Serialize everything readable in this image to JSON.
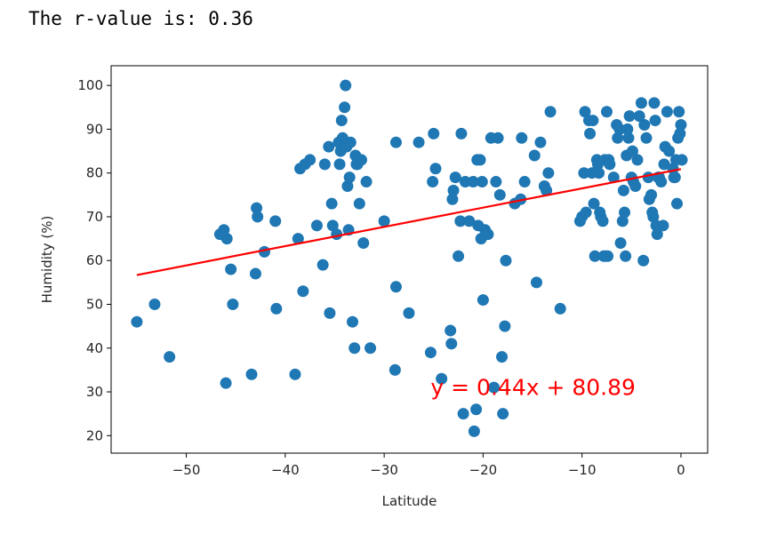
{
  "output": {
    "text": "The r-value is: 0.36"
  },
  "colors": {
    "points": "#1f77b4",
    "regression": "#ff0000",
    "frame": "#000000"
  },
  "chart_data": {
    "type": "scatter",
    "title": "",
    "xlabel": "Latitude",
    "ylabel": "Humidity (%)",
    "xlim": [
      -57.6,
      2.7
    ],
    "ylim": [
      16.0,
      104.5
    ],
    "xticks": [
      -50,
      -40,
      -30,
      -20,
      -10,
      0
    ],
    "xtick_labels": [
      "−50",
      "−40",
      "−30",
      "−20",
      "−10",
      "0"
    ],
    "yticks": [
      20,
      30,
      40,
      50,
      60,
      70,
      80,
      90,
      100
    ],
    "ytick_labels": [
      "20",
      "30",
      "40",
      "50",
      "60",
      "70",
      "80",
      "90",
      "100"
    ],
    "grid": false,
    "regression": {
      "slope": 0.44,
      "intercept": 80.89,
      "x_range": [
        -55.0,
        0.0
      ]
    },
    "annotation": {
      "text": "y = 0.44x + 80.89",
      "x": -25.3,
      "y": 29.3
    },
    "points": [
      [
        -55.0,
        46
      ],
      [
        -53.2,
        50
      ],
      [
        -51.7,
        38
      ],
      [
        -46.6,
        66
      ],
      [
        -46.2,
        67
      ],
      [
        -45.9,
        65
      ],
      [
        -46.0,
        32
      ],
      [
        -45.5,
        58
      ],
      [
        -45.3,
        50
      ],
      [
        -43.4,
        34
      ],
      [
        -43.0,
        57
      ],
      [
        -42.9,
        72
      ],
      [
        -42.8,
        70
      ],
      [
        -42.1,
        62
      ],
      [
        -41.0,
        69
      ],
      [
        -40.9,
        49
      ],
      [
        -39.0,
        34
      ],
      [
        -38.7,
        65
      ],
      [
        -38.5,
        81
      ],
      [
        -38.2,
        53
      ],
      [
        -38.0,
        82
      ],
      [
        -37.5,
        83
      ],
      [
        -36.8,
        68
      ],
      [
        -36.2,
        59
      ],
      [
        -36.0,
        82
      ],
      [
        -35.6,
        86
      ],
      [
        -35.5,
        48
      ],
      [
        -35.3,
        73
      ],
      [
        -35.2,
        68
      ],
      [
        -34.8,
        66
      ],
      [
        -34.6,
        87
      ],
      [
        -34.5,
        82
      ],
      [
        -34.4,
        85
      ],
      [
        -34.3,
        92
      ],
      [
        -34.2,
        88
      ],
      [
        -34.0,
        95
      ],
      [
        -33.9,
        100
      ],
      [
        -33.8,
        86
      ],
      [
        -33.7,
        77
      ],
      [
        -33.6,
        67
      ],
      [
        -33.5,
        79
      ],
      [
        -33.4,
        87
      ],
      [
        -33.2,
        46
      ],
      [
        -33.0,
        40
      ],
      [
        -32.9,
        84
      ],
      [
        -32.8,
        82
      ],
      [
        -32.7,
        82
      ],
      [
        -32.5,
        73
      ],
      [
        -32.3,
        83
      ],
      [
        -32.1,
        64
      ],
      [
        -31.8,
        78
      ],
      [
        -31.4,
        40
      ],
      [
        -30.0,
        69
      ],
      [
        -28.8,
        87
      ],
      [
        -28.8,
        54
      ],
      [
        -28.9,
        35
      ],
      [
        -27.5,
        48
      ],
      [
        -26.5,
        87
      ],
      [
        -25.3,
        39
      ],
      [
        -25.0,
        89
      ],
      [
        -25.1,
        78
      ],
      [
        -24.8,
        81
      ],
      [
        -24.2,
        33
      ],
      [
        -23.3,
        44
      ],
      [
        -23.2,
        41
      ],
      [
        -23.1,
        74
      ],
      [
        -23.0,
        76
      ],
      [
        -22.8,
        79
      ],
      [
        -22.5,
        61
      ],
      [
        -22.3,
        69
      ],
      [
        -22.2,
        89
      ],
      [
        -22.0,
        25
      ],
      [
        -21.8,
        78
      ],
      [
        -21.4,
        69
      ],
      [
        -21.0,
        78
      ],
      [
        -20.9,
        21
      ],
      [
        -20.7,
        26
      ],
      [
        -20.6,
        83
      ],
      [
        -20.5,
        68
      ],
      [
        -20.3,
        83
      ],
      [
        -20.2,
        65
      ],
      [
        -20.1,
        78
      ],
      [
        -20.0,
        51
      ],
      [
        -19.8,
        67
      ],
      [
        -19.5,
        66
      ],
      [
        -19.2,
        88
      ],
      [
        -18.9,
        31
      ],
      [
        -18.7,
        78
      ],
      [
        -18.5,
        88
      ],
      [
        -18.3,
        75
      ],
      [
        -18.1,
        38
      ],
      [
        -18.0,
        25
      ],
      [
        -17.8,
        45
      ],
      [
        -17.7,
        60
      ],
      [
        -16.8,
        73
      ],
      [
        -16.2,
        74
      ],
      [
        -16.1,
        88
      ],
      [
        -15.8,
        78
      ],
      [
        -14.8,
        84
      ],
      [
        -14.6,
        55
      ],
      [
        -14.2,
        87
      ],
      [
        -13.8,
        77
      ],
      [
        -13.6,
        76
      ],
      [
        -13.4,
        80
      ],
      [
        -13.2,
        94
      ],
      [
        -12.2,
        49
      ],
      [
        -10.2,
        69
      ],
      [
        -10.0,
        70
      ],
      [
        -9.8,
        80
      ],
      [
        -9.7,
        94
      ],
      [
        -9.6,
        71
      ],
      [
        -9.3,
        92
      ],
      [
        -9.2,
        89
      ],
      [
        -9.0,
        80
      ],
      [
        -8.9,
        92
      ],
      [
        -8.8,
        73
      ],
      [
        -8.7,
        61
      ],
      [
        -8.5,
        83
      ],
      [
        -8.4,
        82
      ],
      [
        -8.3,
        80
      ],
      [
        -8.2,
        71
      ],
      [
        -8.1,
        70
      ],
      [
        -7.9,
        69
      ],
      [
        -7.8,
        61
      ],
      [
        -7.7,
        83
      ],
      [
        -7.6,
        61
      ],
      [
        -7.5,
        94
      ],
      [
        -7.4,
        61
      ],
      [
        -7.3,
        83
      ],
      [
        -7.2,
        82
      ],
      [
        -6.8,
        79
      ],
      [
        -6.5,
        91
      ],
      [
        -6.4,
        88
      ],
      [
        -6.2,
        90
      ],
      [
        -6.1,
        64
      ],
      [
        -5.9,
        69
      ],
      [
        -5.8,
        76
      ],
      [
        -5.7,
        71
      ],
      [
        -5.6,
        61
      ],
      [
        -5.5,
        84
      ],
      [
        -5.4,
        90
      ],
      [
        -5.3,
        88
      ],
      [
        -5.2,
        93
      ],
      [
        -5.0,
        79
      ],
      [
        -4.9,
        85
      ],
      [
        -4.8,
        78
      ],
      [
        -4.6,
        77
      ],
      [
        -4.4,
        83
      ],
      [
        -4.2,
        93
      ],
      [
        -4.0,
        96
      ],
      [
        -3.8,
        60
      ],
      [
        -3.7,
        91
      ],
      [
        -3.5,
        88
      ],
      [
        -3.3,
        79
      ],
      [
        -3.2,
        74
      ],
      [
        -3.0,
        75
      ],
      [
        -2.9,
        71
      ],
      [
        -2.8,
        70
      ],
      [
        -2.7,
        96
      ],
      [
        -2.6,
        92
      ],
      [
        -2.5,
        68
      ],
      [
        -2.4,
        66
      ],
      [
        -2.3,
        79
      ],
      [
        -2.2,
        79
      ],
      [
        -2.0,
        78
      ],
      [
        -1.8,
        68
      ],
      [
        -1.7,
        82
      ],
      [
        -1.6,
        86
      ],
      [
        -1.4,
        94
      ],
      [
        -1.2,
        85
      ],
      [
        -0.8,
        81
      ],
      [
        -0.7,
        79
      ],
      [
        -0.6,
        79
      ],
      [
        -0.5,
        83
      ],
      [
        -0.4,
        73
      ],
      [
        -0.3,
        88
      ],
      [
        -0.2,
        94
      ],
      [
        -0.1,
        89
      ],
      [
        0.0,
        91
      ],
      [
        0.1,
        83
      ]
    ]
  }
}
